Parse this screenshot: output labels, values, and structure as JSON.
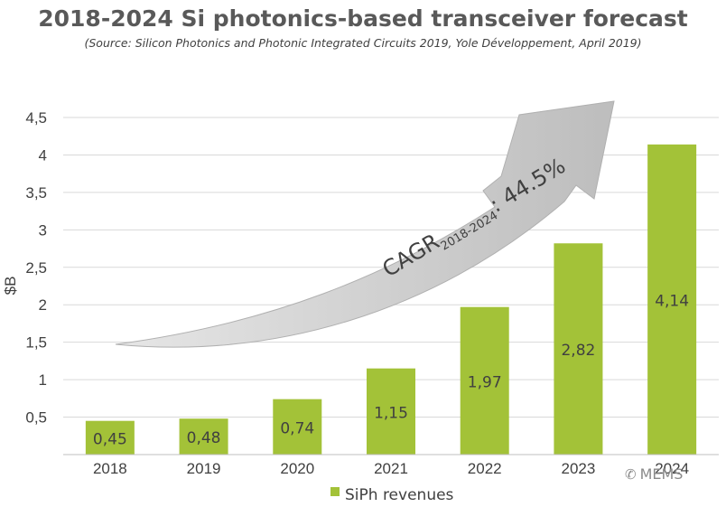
{
  "header": {
    "title": "2018-2024 Si photonics-based transceiver forecast",
    "source": "(Source: Silicon Photonics and Photonic Integrated Circuits 2019, Yole Développement, April 2019)"
  },
  "chart_data": {
    "type": "bar",
    "categories": [
      "2018",
      "2019",
      "2020",
      "2021",
      "2022",
      "2023",
      "2024"
    ],
    "series": [
      {
        "name": "SiPh revenues",
        "values": [
          0.45,
          0.48,
          0.74,
          1.15,
          1.97,
          2.82,
          4.14
        ]
      }
    ],
    "data_labels": [
      "0,45",
      "0,48",
      "0,74",
      "1,15",
      "1,97",
      "2,82",
      "4,14"
    ],
    "xlabel": "",
    "ylabel": "$B",
    "ylim": [
      0,
      4.5
    ],
    "yticks": [
      0.5,
      1,
      1.5,
      2,
      2.5,
      3,
      3.5,
      4,
      4.5
    ],
    "ytick_labels": [
      "0,5",
      "1",
      "1,5",
      "2",
      "2,5",
      "3",
      "3,5",
      "4",
      "4,5"
    ],
    "grid": true,
    "legend": "bottom-center",
    "annotation": {
      "prefix": "CAGR",
      "subscript": "2018-2024",
      "suffix": ": 44.5%"
    },
    "colors": {
      "bar": "#a3c238",
      "grid": "#d9d9d9",
      "arrow": "#bfbfbf",
      "text": "#404040"
    }
  },
  "watermark": {
    "icon": "wechat-icon",
    "text": "MEMS"
  }
}
